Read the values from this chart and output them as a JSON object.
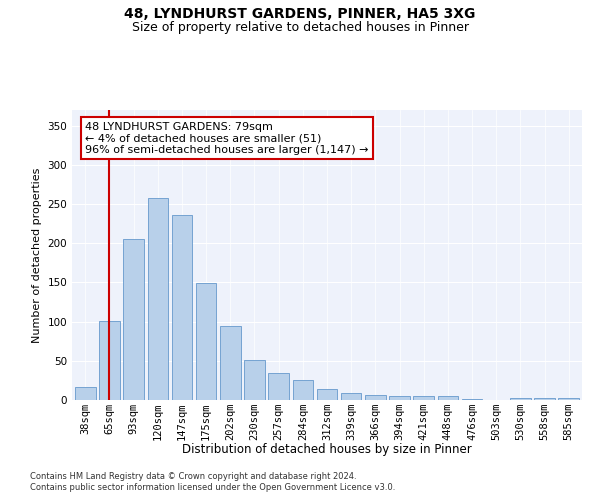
{
  "title1": "48, LYNDHURST GARDENS, PINNER, HA5 3XG",
  "title2": "Size of property relative to detached houses in Pinner",
  "xlabel": "Distribution of detached houses by size in Pinner",
  "ylabel": "Number of detached properties",
  "categories": [
    "38sqm",
    "65sqm",
    "93sqm",
    "120sqm",
    "147sqm",
    "175sqm",
    "202sqm",
    "230sqm",
    "257sqm",
    "284sqm",
    "312sqm",
    "339sqm",
    "366sqm",
    "394sqm",
    "421sqm",
    "448sqm",
    "476sqm",
    "503sqm",
    "530sqm",
    "558sqm",
    "585sqm"
  ],
  "values": [
    17,
    101,
    205,
    258,
    236,
    149,
    95,
    51,
    35,
    25,
    14,
    9,
    7,
    5,
    5,
    5,
    1,
    0,
    3,
    2,
    2
  ],
  "bar_color": "#b8d0ea",
  "bar_edge_color": "#6699cc",
  "vline_x": 1,
  "vline_color": "#cc0000",
  "annotation_text": "48 LYNDHURST GARDENS: 79sqm\n← 4% of detached houses are smaller (51)\n96% of semi-detached houses are larger (1,147) →",
  "annotation_box_color": "#ffffff",
  "annotation_box_edge": "#cc0000",
  "footer1": "Contains HM Land Registry data © Crown copyright and database right 2024.",
  "footer2": "Contains public sector information licensed under the Open Government Licence v3.0.",
  "ylim": [
    0,
    370
  ],
  "yticks": [
    0,
    50,
    100,
    150,
    200,
    250,
    300,
    350
  ],
  "background_color": "#eef2fb",
  "title1_fontsize": 10,
  "title2_fontsize": 9,
  "xlabel_fontsize": 8.5,
  "ylabel_fontsize": 8,
  "tick_fontsize": 7.5,
  "annotation_fontsize": 8,
  "footer_fontsize": 6
}
